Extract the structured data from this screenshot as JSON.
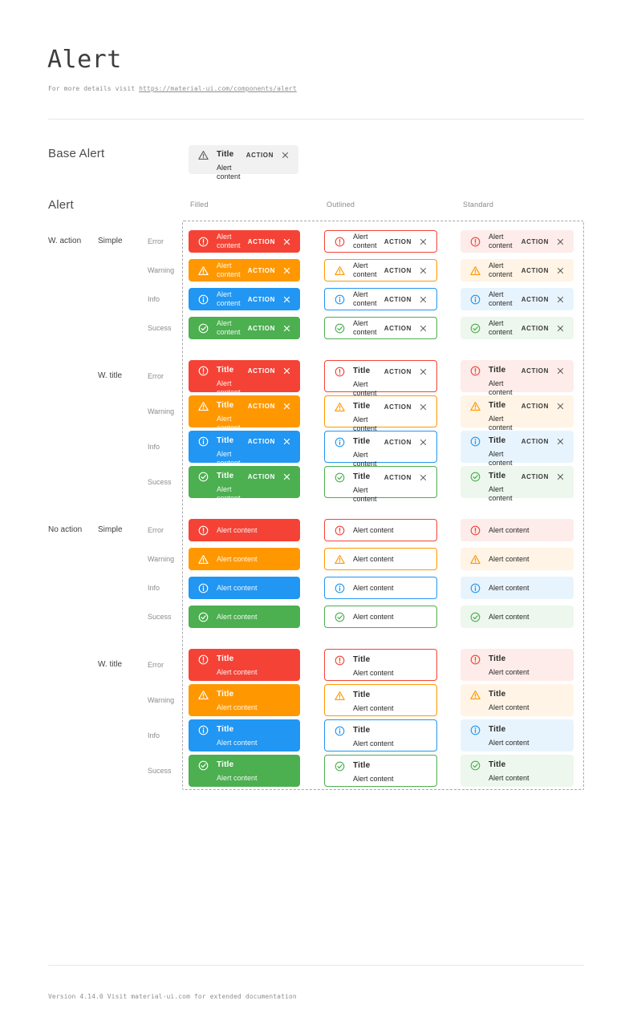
{
  "header": {
    "title": "Alert",
    "subtitle_prefix": "For more details visit ",
    "subtitle_link": "https://material-ui.com/components/alert"
  },
  "base_section": {
    "label": "Base Alert",
    "alert": {
      "title": "Title",
      "content": "Alert content",
      "action": "ACTION"
    }
  },
  "alert_grid": {
    "section_label": "Alert",
    "column_headers": [
      "Filled",
      "Outlined",
      "Standard"
    ],
    "variants": [
      "filled",
      "outlined",
      "standard"
    ],
    "severities": [
      "error",
      "warning",
      "info",
      "success"
    ],
    "severity_labels": [
      "Error",
      "Warning",
      "Info",
      "Sucess"
    ],
    "groups": [
      {
        "label": "W. action",
        "with_action": true,
        "subgroups": [
          {
            "label": "Simple",
            "with_title": false
          },
          {
            "label": "W. title",
            "with_title": true
          }
        ]
      },
      {
        "label": "No action",
        "with_action": false,
        "subgroups": [
          {
            "label": "Simple",
            "with_title": false
          },
          {
            "label": "W. title",
            "with_title": true
          }
        ]
      }
    ],
    "alert": {
      "title": "Title",
      "content": "Alert content",
      "action": "ACTION"
    }
  },
  "icons": {
    "error": "error-outline-icon",
    "warning": "warning-triangle-icon",
    "info": "info-outline-icon",
    "success": "check-circle-outline-icon",
    "base": "warning-triangle-icon",
    "close": "close-icon"
  },
  "colors": {
    "error": {
      "main": "#f44336",
      "standard_bg": "#fdecea"
    },
    "warning": {
      "main": "#ff9800",
      "standard_bg": "#fff4e5"
    },
    "info": {
      "main": "#2196f3",
      "standard_bg": "#e8f4fd"
    },
    "success": {
      "main": "#4caf50",
      "standard_bg": "#edf7ed"
    },
    "base": {
      "bg": "#f1f1f1",
      "icon": "#5f5f5f"
    },
    "dark_text": "#2a2a2a",
    "action_dark": "#3a3a3a",
    "close_dark": "rgba(0,0,0,0.55)",
    "filled_text": "#ffffff"
  },
  "footer": {
    "text": "Version 4.14.0  Visit material-ui.com for extended documentation"
  }
}
